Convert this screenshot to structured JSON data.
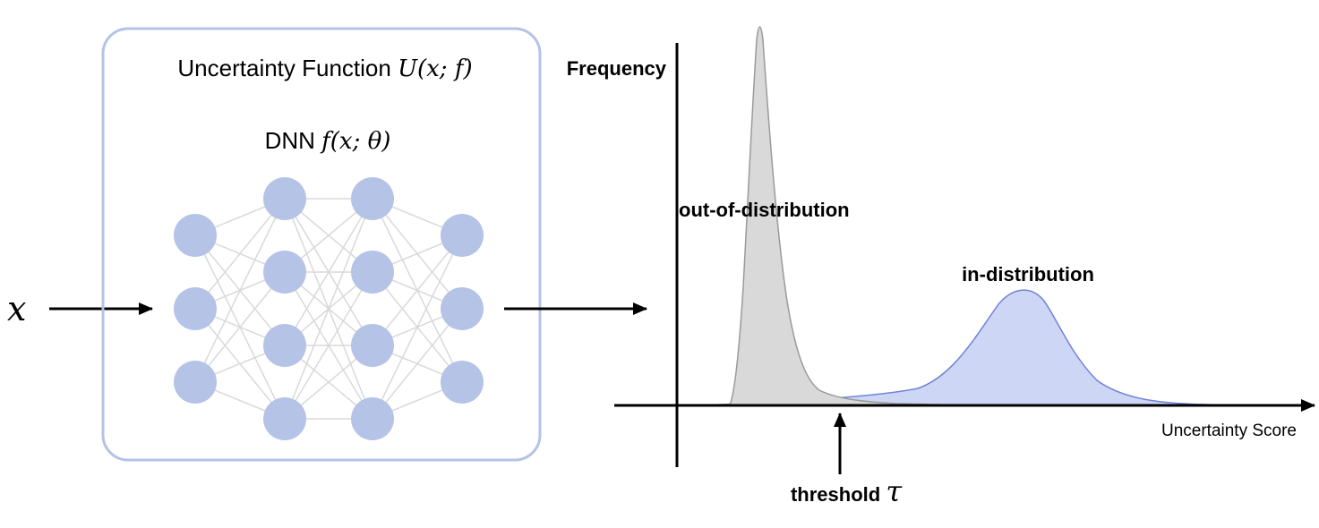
{
  "input": {
    "label": "x"
  },
  "uncertainty_box": {
    "title": "Uncertainty Function ",
    "title_math": "U(x; f)"
  },
  "dnn": {
    "label": "DNN ",
    "label_math": "f(x; θ)",
    "layers": [
      3,
      4,
      4,
      3
    ]
  },
  "plot": {
    "y_axis_label": "Frequency",
    "x_axis_label": "Uncertainty Score",
    "ood_label": "out-of-distribution",
    "id_label": "in-distribution",
    "threshold_label": "threshold ",
    "threshold_symbol": "τ"
  },
  "colors": {
    "node": "#b4c3e6",
    "box_border": "#b4c3e6",
    "edge": "#d9d9d9",
    "ood_fill": "#d9d9d9",
    "ood_stroke": "#9a9a9a",
    "id_fill": "#cdd6f4",
    "id_stroke": "#6f84d8",
    "axis": "#000000"
  }
}
